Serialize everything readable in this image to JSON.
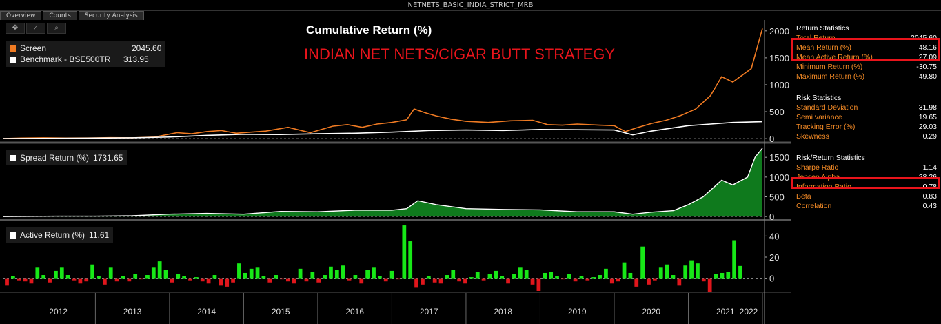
{
  "window": {
    "title": "NETNETS_BASIC_INDIA_STRICT_MRB"
  },
  "tabs": [
    {
      "label": "Overview",
      "active": true
    },
    {
      "label": "Counts",
      "active": false
    },
    {
      "label": "Security Analysis",
      "active": false
    }
  ],
  "toolbar": {
    "icons": [
      "crosshair-icon",
      "draw-icon",
      "zoom-icon"
    ]
  },
  "panel1": {
    "title": "Cumulative Return (%)",
    "overlay": "INDIAN NET NETS/CIGAR BUTT STRATEGY",
    "legend": [
      {
        "name": "Screen",
        "value": "2045.60",
        "color": "#f07b23"
      },
      {
        "name": "Benchmark - BSE500TR",
        "value": "313.95",
        "color": "#ffffff"
      }
    ]
  },
  "panel2": {
    "legend": [
      {
        "name": "Spread Return (%)",
        "value": "1731.65",
        "color": "#ffffff"
      }
    ]
  },
  "panel3": {
    "legend": [
      {
        "name": "Active Return (%)",
        "value": "11.61",
        "color": "#ffffff"
      }
    ]
  },
  "x_axis": {
    "labels": [
      "2012",
      "2013",
      "2014",
      "2015",
      "2016",
      "2017",
      "2018",
      "2019",
      "2020",
      "2021",
      "2022"
    ]
  },
  "chart_data": [
    {
      "type": "line",
      "title": "Cumulative Return (%)",
      "x_range": [
        2011.75,
        2022.0
      ],
      "ylim": [
        -50,
        2100
      ],
      "yticks": [
        0,
        500,
        1000,
        1500,
        2000
      ],
      "series": [
        {
          "name": "Screen",
          "color": "#f07b23",
          "x": [
            2011.75,
            2012.0,
            2012.3,
            2012.6,
            2012.9,
            2013.2,
            2013.5,
            2013.8,
            2014.1,
            2014.3,
            2014.5,
            2014.7,
            2014.9,
            2015.1,
            2015.3,
            2015.6,
            2015.9,
            2016.0,
            2016.2,
            2016.4,
            2016.6,
            2016.8,
            2017.0,
            2017.2,
            2017.3,
            2017.45,
            2017.6,
            2017.8,
            2018.0,
            2018.3,
            2018.6,
            2018.9,
            2019.1,
            2019.3,
            2019.5,
            2019.8,
            2020.0,
            2020.15,
            2020.3,
            2020.5,
            2020.7,
            2020.9,
            2021.1,
            2021.3,
            2021.45,
            2021.6,
            2021.75,
            2021.85,
            2022.0
          ],
          "values": [
            0,
            10,
            15,
            10,
            12,
            18,
            15,
            30,
            110,
            90,
            130,
            150,
            100,
            120,
            140,
            210,
            110,
            150,
            230,
            260,
            210,
            270,
            300,
            350,
            550,
            480,
            420,
            360,
            320,
            300,
            330,
            340,
            260,
            250,
            270,
            250,
            240,
            130,
            200,
            280,
            340,
            430,
            550,
            800,
            1150,
            1050,
            1200,
            1300,
            2045.6
          ]
        },
        {
          "name": "Benchmark - BSE500TR",
          "color": "#ffffff",
          "x": [
            2011.75,
            2012.5,
            2013.0,
            2013.5,
            2014.0,
            2014.5,
            2015.0,
            2015.5,
            2016.0,
            2016.5,
            2017.0,
            2017.5,
            2018.0,
            2018.5,
            2019.0,
            2019.5,
            2020.0,
            2020.25,
            2020.5,
            2020.8,
            2021.0,
            2021.3,
            2021.6,
            2022.0
          ],
          "values": [
            0,
            5,
            10,
            15,
            30,
            60,
            80,
            75,
            90,
            100,
            120,
            150,
            160,
            150,
            170,
            165,
            160,
            70,
            140,
            200,
            240,
            270,
            300,
            313.95
          ]
        }
      ]
    },
    {
      "type": "area",
      "title": "Spread Return (%)",
      "x_range": [
        2011.75,
        2022.0
      ],
      "ylim": [
        -50,
        1800
      ],
      "yticks": [
        0,
        500,
        1000,
        1500
      ],
      "series": [
        {
          "name": "Spread Return (%)",
          "color": "#ffffff",
          "fill": "#0f7a1d",
          "x": [
            2011.75,
            2012.5,
            2013.0,
            2013.5,
            2014.0,
            2014.5,
            2015.0,
            2015.5,
            2016.0,
            2016.5,
            2017.0,
            2017.2,
            2017.35,
            2017.6,
            2018.0,
            2018.5,
            2019.0,
            2019.5,
            2020.0,
            2020.25,
            2020.5,
            2020.8,
            2021.0,
            2021.2,
            2021.45,
            2021.6,
            2021.8,
            2021.9,
            2022.0
          ],
          "values": [
            0,
            10,
            10,
            20,
            60,
            80,
            60,
            130,
            120,
            160,
            160,
            200,
            400,
            300,
            200,
            180,
            170,
            120,
            120,
            60,
            110,
            150,
            300,
            500,
            920,
            800,
            1000,
            1500,
            1731.65
          ]
        }
      ]
    },
    {
      "type": "bar",
      "title": "Active Return (%)",
      "x_range": [
        2011.75,
        2022.0
      ],
      "ylim": [
        -12,
        52
      ],
      "yticks": [
        0,
        20,
        40
      ],
      "bars": [
        -7,
        2,
        -2,
        -3,
        -5,
        10,
        3,
        -4,
        7,
        10,
        3,
        -2,
        -5,
        -3,
        13,
        2,
        -6,
        10,
        -3,
        2,
        -3,
        4,
        -1,
        3,
        10,
        16,
        8,
        -4,
        4,
        2,
        -2,
        1,
        -3,
        -5,
        3,
        -7,
        -8,
        -4,
        14,
        5,
        9,
        10,
        2,
        -4,
        3,
        -1,
        -3,
        -5,
        9,
        -3,
        6,
        -4,
        3,
        11,
        8,
        12,
        -2,
        3,
        -5,
        8,
        10,
        2,
        -3,
        7,
        -1,
        50,
        35,
        -9,
        -6,
        2,
        -4,
        -5,
        3,
        8,
        -3,
        -5,
        1,
        6,
        -2,
        4,
        7,
        2,
        -5,
        4,
        10,
        8,
        -6,
        -12,
        5,
        6,
        2,
        -1,
        4,
        -3,
        2,
        -2,
        1,
        3,
        9,
        -5,
        -3,
        15,
        5,
        -8,
        30,
        -6,
        -2,
        10,
        13,
        3,
        -7,
        12,
        17,
        14,
        -3,
        -13,
        4,
        5,
        6,
        36,
        11.61
      ],
      "bar_colors": {
        "positive": "#17e817",
        "negative": "#e0161c"
      }
    }
  ],
  "stats": [
    {
      "title": "Return Statistics",
      "rows": [
        {
          "label": "Total Return",
          "value": "2045.60"
        },
        {
          "label": "Mean Return (%)",
          "value": "48.16"
        },
        {
          "label": "Mean Active Return (%)",
          "value": "27.09"
        },
        {
          "label": "Minimum Return (%)",
          "value": "-30.75"
        },
        {
          "label": "Maximum Return (%)",
          "value": "49.80"
        }
      ]
    },
    {
      "title": "Risk Statistics",
      "rows": [
        {
          "label": "Standard Deviation",
          "value": "31.98"
        },
        {
          "label": "Semi variance",
          "value": "19.65"
        },
        {
          "label": "Tracking Error (%)",
          "value": "29.03"
        },
        {
          "label": "Skewness",
          "value": "0.29"
        }
      ]
    },
    {
      "title": "Risk/Return Statistics",
      "rows": [
        {
          "label": "Sharpe Ratio",
          "value": "1.14"
        },
        {
          "label": "Jensen Alpha",
          "value": "28.26"
        },
        {
          "label": "Information Ratio",
          "value": "0.78"
        },
        {
          "label": "Beta",
          "value": "0.83"
        },
        {
          "label": "Correlation",
          "value": "0.43"
        }
      ]
    }
  ]
}
